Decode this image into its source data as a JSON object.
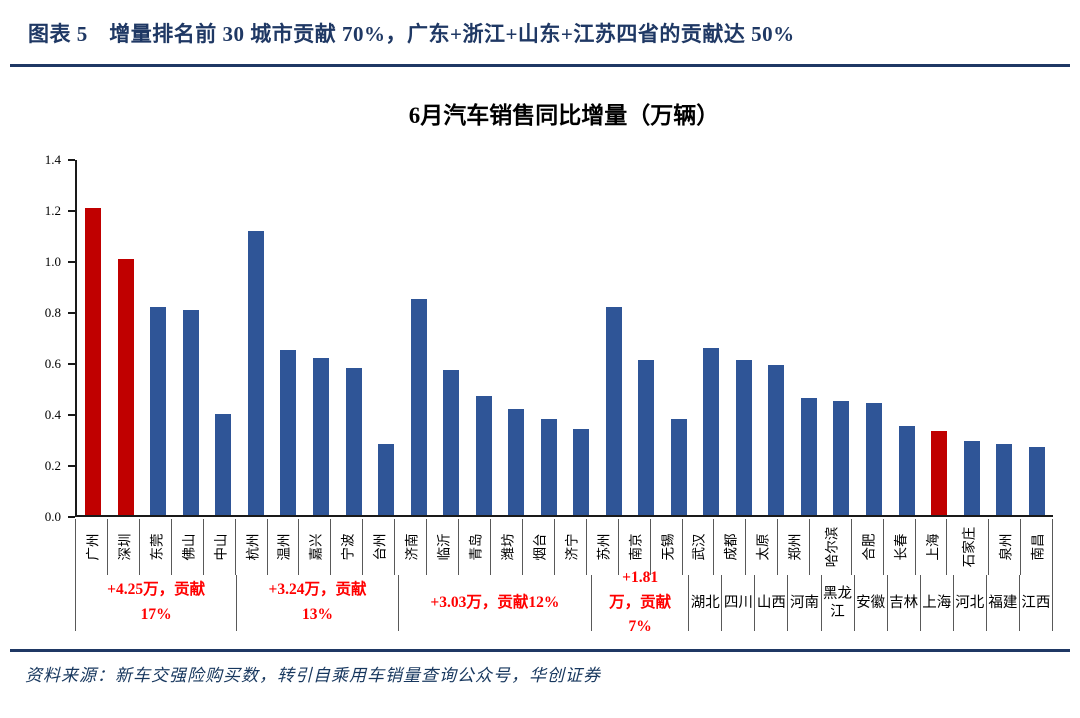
{
  "header": {
    "title": "图表 5　增量排名前 30 城市贡献 70%，广东+浙江+山东+江苏四省的贡献达 50%"
  },
  "footer": {
    "source": "资料来源：新车交强险购买数，转引自乘用车销量查询公众号，华创证券"
  },
  "colors": {
    "navy": "#1F3864",
    "bar_blue": "#2F5597",
    "bar_red": "#C00000",
    "annotation_red": "#FF0000",
    "divider_gray": "#595959"
  },
  "chart_data": {
    "type": "bar",
    "title": "6月汽车销售同比增量（万辆）",
    "xlabel": "",
    "ylabel": "",
    "ylim": [
      0,
      1.4
    ],
    "ytick_step": 0.2,
    "grid": false,
    "legend": false,
    "categories": [
      "广州",
      "深圳",
      "东莞",
      "佛山",
      "中山",
      "杭州",
      "温州",
      "嘉兴",
      "宁波",
      "台州",
      "济南",
      "临沂",
      "青岛",
      "潍坊",
      "烟台",
      "济宁",
      "苏州",
      "南京",
      "无锡",
      "武汉",
      "成都",
      "太原",
      "郑州",
      "哈尔滨",
      "合肥",
      "长春",
      "上海",
      "石家庄",
      "泉州",
      "南昌"
    ],
    "values": [
      1.21,
      1.01,
      0.82,
      0.81,
      0.4,
      1.12,
      0.65,
      0.62,
      0.58,
      0.28,
      0.85,
      0.57,
      0.47,
      0.42,
      0.38,
      0.34,
      0.82,
      0.61,
      0.38,
      0.66,
      0.61,
      0.59,
      0.46,
      0.45,
      0.44,
      0.35,
      0.33,
      0.29,
      0.28,
      0.27
    ],
    "highlighted_cities": [
      "广州",
      "深圳",
      "上海"
    ],
    "groups": [
      {
        "span": 5,
        "style": "annotation",
        "label": "+4.25万，贡献17%"
      },
      {
        "span": 5,
        "style": "annotation",
        "label": "+3.24万，贡献13%"
      },
      {
        "span": 6,
        "style": "annotation",
        "label": "+3.03万，贡献12%"
      },
      {
        "span": 3,
        "style": "annotation",
        "label": "+1.81万，贡献7%"
      },
      {
        "span": 1,
        "style": "province",
        "label": "湖北"
      },
      {
        "span": 1,
        "style": "province",
        "label": "四川"
      },
      {
        "span": 1,
        "style": "province",
        "label": "山西"
      },
      {
        "span": 1,
        "style": "province",
        "label": "河南"
      },
      {
        "span": 1,
        "style": "province",
        "label": "黑龙江"
      },
      {
        "span": 1,
        "style": "province",
        "label": "安徽"
      },
      {
        "span": 1,
        "style": "province",
        "label": "吉林"
      },
      {
        "span": 1,
        "style": "province",
        "label": "上海"
      },
      {
        "span": 1,
        "style": "province",
        "label": "河北"
      },
      {
        "span": 1,
        "style": "province",
        "label": "福建"
      },
      {
        "span": 1,
        "style": "province",
        "label": "江西"
      }
    ]
  }
}
